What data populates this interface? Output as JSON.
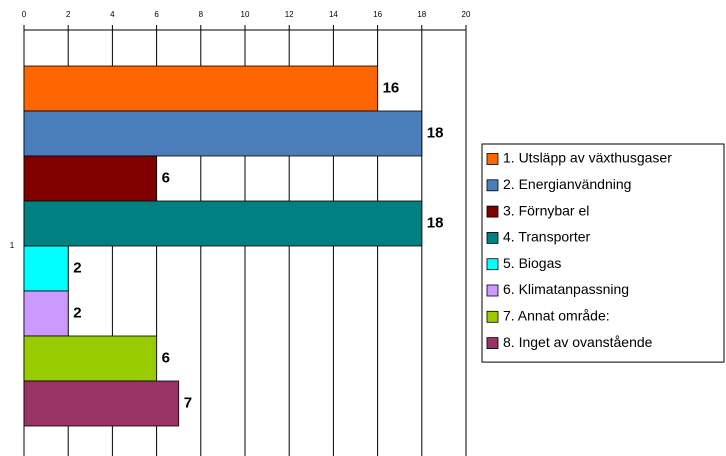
{
  "chart_data": {
    "type": "bar",
    "orientation": "horizontal",
    "categories": [
      "1"
    ],
    "series": [
      {
        "name": "1. Utsläpp av växthusgaser",
        "color": "#ff6600",
        "values": [
          16
        ]
      },
      {
        "name": "2. Energianvändning",
        "color": "#4a7ebb",
        "values": [
          18
        ]
      },
      {
        "name": "3. Förnybar el",
        "color": "#800000",
        "values": [
          6
        ]
      },
      {
        "name": "4. Transporter",
        "color": "#008080",
        "values": [
          18
        ]
      },
      {
        "name": "5. Biogas",
        "color": "#00ffff",
        "values": [
          2
        ]
      },
      {
        "name": "6. Klimatanpassning",
        "color": "#cc99ff",
        "values": [
          2
        ]
      },
      {
        "name": "7. Annat område:",
        "color": "#99cc00",
        "values": [
          6
        ]
      },
      {
        "name": "8. Inget av ovanstående",
        "color": "#993366",
        "values": [
          7
        ]
      }
    ],
    "xlim": [
      0,
      20
    ],
    "xticks": [
      0,
      2,
      4,
      6,
      8,
      10,
      12,
      14,
      16,
      18,
      20
    ],
    "grid": true,
    "legend": "right"
  }
}
